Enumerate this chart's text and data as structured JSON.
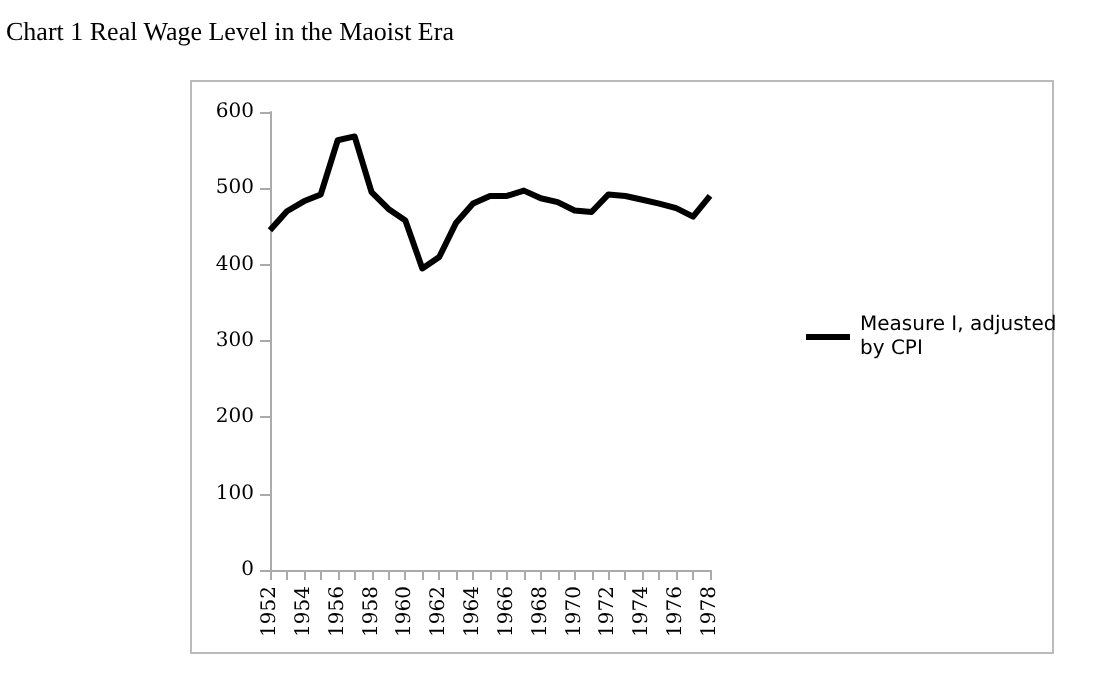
{
  "chart_data": {
    "type": "line",
    "title": "Chart 1 Real Wage Level in the Maoist Era",
    "categories": [
      "1952",
      null,
      "1954",
      null,
      "1956",
      null,
      "1958",
      null,
      "1960",
      null,
      "1962",
      null,
      "1964",
      null,
      "1966",
      null,
      "1968",
      null,
      "1970",
      null,
      "1972",
      null,
      "1974",
      null,
      "1976",
      null,
      "1978"
    ],
    "series": [
      {
        "name": "Measure I, adjusted by CPI",
        "color": "#000000",
        "values": [
          445,
          470,
          483,
          492,
          563,
          568,
          495,
          473,
          458,
          395,
          410,
          455,
          480,
          490,
          490,
          497,
          487,
          482,
          471,
          469,
          492,
          490,
          485,
          480,
          474,
          463,
          490
        ]
      }
    ],
    "ylim": [
      0,
      600
    ],
    "yticks": [
      0,
      100,
      200,
      300,
      400,
      500,
      600
    ],
    "grid": false,
    "legend": "right",
    "marker": "none",
    "line_style": "solid"
  }
}
